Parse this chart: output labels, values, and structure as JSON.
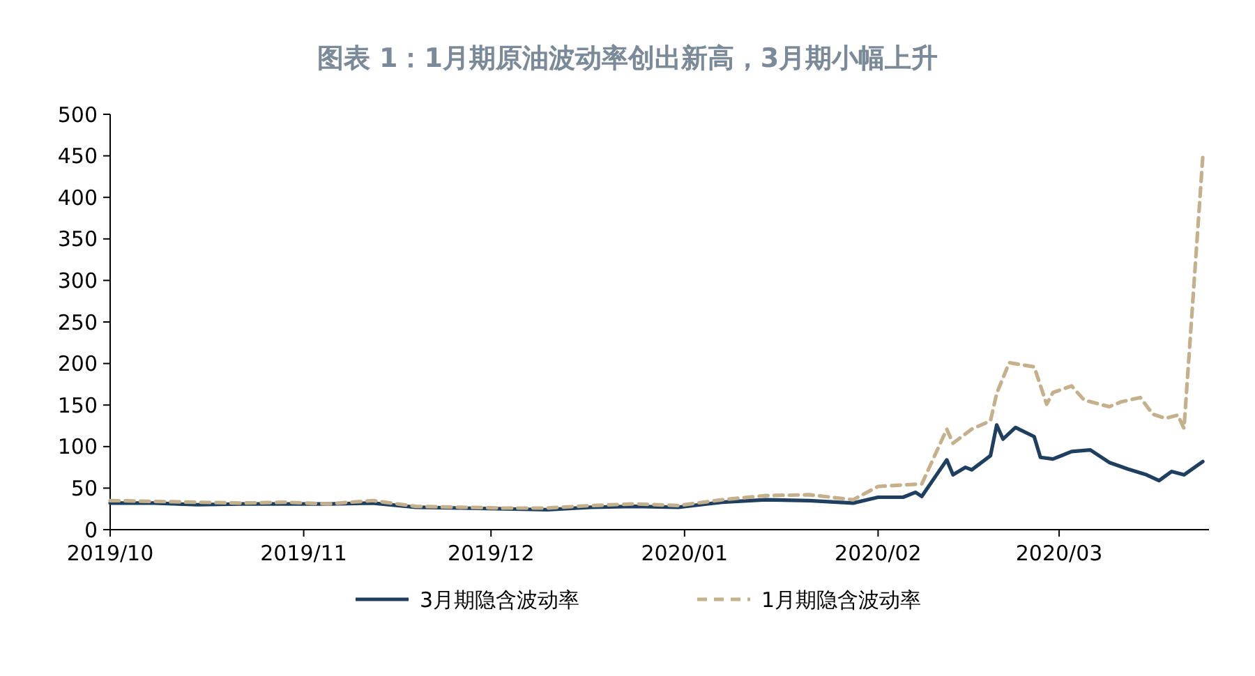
{
  "chart_data": {
    "type": "line",
    "title": "图表 1：1月期原油波动率创出新高，3月期小幅上升",
    "xlim": [
      "2019-10-01",
      "2020-03-25"
    ],
    "xticks": [
      {
        "value": "2019-10-01",
        "label": "2019/10"
      },
      {
        "value": "2019-11-01",
        "label": "2019/11"
      },
      {
        "value": "2019-12-01",
        "label": "2019/12"
      },
      {
        "value": "2020-01-01",
        "label": "2020/01"
      },
      {
        "value": "2020-02-01",
        "label": "2020/02"
      },
      {
        "value": "2020-03-01",
        "label": "2020/03"
      }
    ],
    "ylim": [
      0,
      500
    ],
    "yticks": [
      0,
      50,
      100,
      150,
      200,
      250,
      300,
      350,
      400,
      450,
      500
    ],
    "grid": false,
    "legend": "bottom",
    "series": [
      {
        "name": "3月期隐含波动率",
        "color": "#1f3f60",
        "line_style": "solid",
        "x": [
          "2019-10-01",
          "2019-10-08",
          "2019-10-15",
          "2019-10-22",
          "2019-10-29",
          "2019-11-05",
          "2019-11-12",
          "2019-11-19",
          "2019-11-26",
          "2019-12-03",
          "2019-12-10",
          "2019-12-17",
          "2019-12-24",
          "2019-12-31",
          "2020-01-07",
          "2020-01-14",
          "2020-01-21",
          "2020-01-28",
          "2020-02-01",
          "2020-02-05",
          "2020-02-07",
          "2020-02-08",
          "2020-02-12",
          "2020-02-13",
          "2020-02-15",
          "2020-02-16",
          "2020-02-19",
          "2020-02-20",
          "2020-02-21",
          "2020-02-23",
          "2020-02-26",
          "2020-02-27",
          "2020-02-29",
          "2020-03-03",
          "2020-03-06",
          "2020-03-09",
          "2020-03-12",
          "2020-03-15",
          "2020-03-17",
          "2020-03-19",
          "2020-03-21",
          "2020-03-24"
        ],
        "values": [
          32,
          32,
          30,
          31,
          31,
          31,
          32,
          27,
          26,
          25,
          24,
          27,
          28,
          27,
          33,
          36,
          35,
          32,
          39,
          39,
          45,
          40,
          84,
          66,
          75,
          72,
          89,
          126,
          109,
          123,
          112,
          87,
          85,
          94,
          96,
          81,
          73,
          66,
          59,
          70,
          66,
          82
        ]
      },
      {
        "name": "1月期隐含波动率",
        "color": "#c4b08a",
        "line_style": "dashed",
        "x": [
          "2019-10-01",
          "2019-10-08",
          "2019-10-15",
          "2019-10-22",
          "2019-10-29",
          "2019-11-05",
          "2019-11-12",
          "2019-11-19",
          "2019-11-26",
          "2019-12-03",
          "2019-12-10",
          "2019-12-17",
          "2019-12-24",
          "2019-12-31",
          "2020-01-07",
          "2020-01-14",
          "2020-01-21",
          "2020-01-28",
          "2020-02-01",
          "2020-02-08",
          "2020-02-12",
          "2020-02-13",
          "2020-02-16",
          "2020-02-19",
          "2020-02-20",
          "2020-02-22",
          "2020-02-26",
          "2020-02-28",
          "2020-02-29",
          "2020-03-03",
          "2020-03-05",
          "2020-03-09",
          "2020-03-11",
          "2020-03-14",
          "2020-03-16",
          "2020-03-18",
          "2020-03-20",
          "2020-03-21",
          "2020-03-24"
        ],
        "values": [
          35,
          34,
          33,
          32,
          33,
          31,
          35,
          28,
          27,
          26,
          26,
          29,
          31,
          29,
          36,
          41,
          42,
          36,
          52,
          55,
          121,
          104,
          121,
          131,
          164,
          201,
          196,
          151,
          165,
          173,
          156,
          148,
          154,
          159,
          139,
          134,
          138,
          122,
          448
        ]
      }
    ]
  }
}
